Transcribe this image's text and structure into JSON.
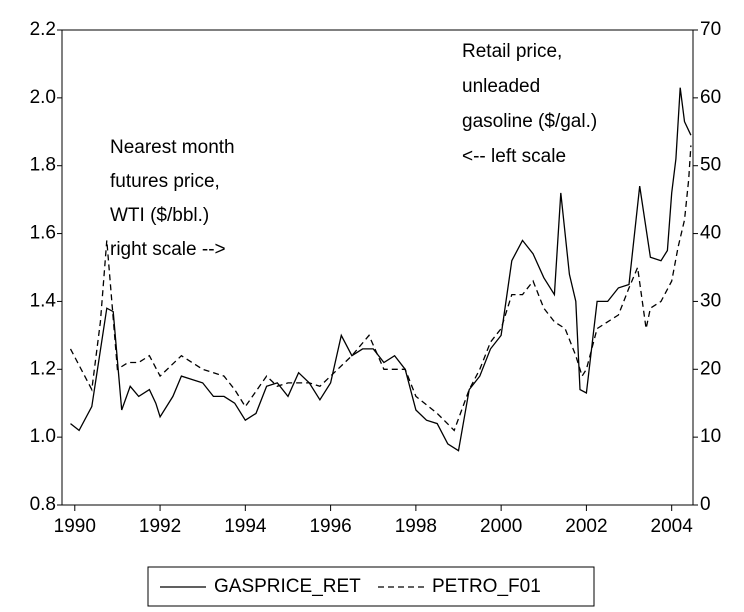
{
  "chart_data": {
    "type": "line",
    "series": [
      {
        "name": "GASPRICE_RET",
        "color": "#000000",
        "dash": "none",
        "x": [
          1989.9,
          1990.1,
          1990.4,
          1990.75,
          1990.9,
          1991.1,
          1991.3,
          1991.5,
          1991.75,
          1991.9,
          1992.0,
          1992.3,
          1992.5,
          1992.75,
          1993.0,
          1993.25,
          1993.5,
          1993.75,
          1994.0,
          1994.25,
          1994.5,
          1994.75,
          1995.0,
          1995.25,
          1995.5,
          1995.75,
          1996.0,
          1996.25,
          1996.5,
          1996.75,
          1997.0,
          1997.25,
          1997.5,
          1997.75,
          1998.0,
          1998.25,
          1998.5,
          1998.75,
          1999.0,
          1999.25,
          1999.5,
          1999.75,
          2000.0,
          2000.25,
          2000.5,
          2000.75,
          2001.0,
          2001.25,
          2001.4,
          2001.6,
          2001.75,
          2001.85,
          2002.0,
          2002.25,
          2002.5,
          2002.75,
          2003.0,
          2003.25,
          2003.5,
          2003.75,
          2003.9,
          2004.0,
          2004.1,
          2004.2,
          2004.3,
          2004.45
        ],
        "values": [
          1.04,
          1.02,
          1.09,
          1.38,
          1.37,
          1.08,
          1.15,
          1.12,
          1.14,
          1.1,
          1.06,
          1.12,
          1.18,
          1.17,
          1.16,
          1.12,
          1.12,
          1.1,
          1.05,
          1.07,
          1.15,
          1.16,
          1.12,
          1.19,
          1.16,
          1.11,
          1.16,
          1.3,
          1.24,
          1.26,
          1.26,
          1.22,
          1.24,
          1.2,
          1.08,
          1.05,
          1.04,
          0.98,
          0.96,
          1.14,
          1.18,
          1.26,
          1.3,
          1.52,
          1.58,
          1.54,
          1.47,
          1.42,
          1.72,
          1.48,
          1.4,
          1.14,
          1.13,
          1.4,
          1.4,
          1.44,
          1.45,
          1.74,
          1.53,
          1.52,
          1.55,
          1.72,
          1.82,
          2.03,
          1.93,
          1.89
        ]
      },
      {
        "name": "PETRO_F01",
        "color": "#000000",
        "dash": "6,4",
        "axis": "y2",
        "x": [
          1989.9,
          1990.4,
          1990.6,
          1990.75,
          1991.0,
          1991.25,
          1991.5,
          1991.75,
          1992.0,
          1992.5,
          1993.0,
          1993.5,
          1993.75,
          1994.0,
          1994.5,
          1994.75,
          1995.0,
          1995.5,
          1995.75,
          1996.0,
          1996.5,
          1996.9,
          1997.25,
          1997.5,
          1997.75,
          1998.0,
          1998.5,
          1998.9,
          1999.25,
          1999.5,
          1999.75,
          2000.0,
          2000.25,
          2000.5,
          2000.75,
          2001.0,
          2001.25,
          2001.5,
          2001.75,
          2001.9,
          2002.0,
          2002.25,
          2002.5,
          2002.75,
          2003.0,
          2003.2,
          2003.4,
          2003.5,
          2003.75,
          2004.0,
          2004.15,
          2004.3,
          2004.4,
          2004.45
        ],
        "values": [
          23,
          17,
          27,
          39,
          20,
          21,
          21,
          22,
          19,
          22,
          20,
          19,
          17,
          14.5,
          19,
          17.5,
          18,
          18,
          17.5,
          19,
          22,
          25,
          20,
          20,
          20,
          16,
          13.5,
          11,
          17,
          20,
          24,
          26,
          31,
          31,
          33,
          29,
          27,
          26,
          22,
          19,
          20,
          26,
          27,
          28,
          32,
          35,
          26,
          29,
          30,
          33,
          38,
          42,
          48,
          53
        ]
      }
    ],
    "xlim": [
      1989.7,
      2004.5
    ],
    "xticks": [
      1990,
      1992,
      1994,
      1996,
      1998,
      2000,
      2002,
      2004
    ],
    "ylim": [
      0.8,
      2.2
    ],
    "yticks": [
      0.8,
      {
        "value": 1,
        "label": "1.0"
      },
      1.2,
      1.4,
      1.6,
      1.8,
      {
        "value": 2,
        "label": "2.0"
      },
      2.2
    ],
    "y2lim": [
      0,
      70
    ],
    "y2ticks": [
      0,
      10,
      20,
      30,
      40,
      50,
      60,
      70
    ],
    "annotations": [
      [
        "Nearest month",
        "futures price,",
        "WTI ($/bbl.)",
        "right scale -->"
      ],
      [
        "Retail price,",
        "unleaded",
        "gasoline ($/gal.)",
        "<-- left scale"
      ]
    ]
  }
}
